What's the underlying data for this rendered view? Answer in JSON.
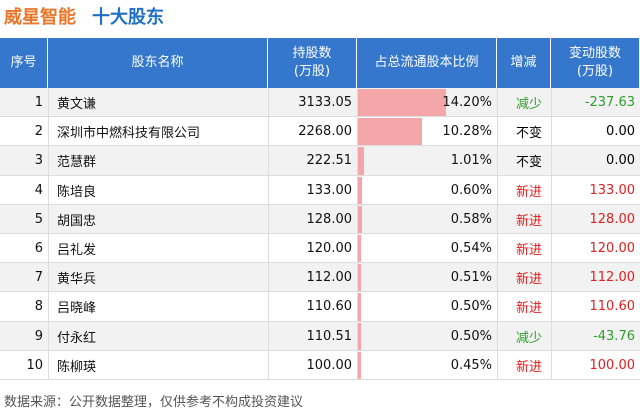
{
  "header": {
    "company": "威星智能",
    "title": "十大股东"
  },
  "table": {
    "columns": [
      [
        "序号"
      ],
      [
        "股东名称"
      ],
      [
        "持股数",
        "(万股)"
      ],
      [
        "占总流通股本比例"
      ],
      [
        "增减"
      ],
      [
        "变动股数",
        "(万股)"
      ]
    ],
    "rows": [
      {
        "rank": "1",
        "name": "黄文谦",
        "shares": "3133.05",
        "ratio": {
          "value": 14.2,
          "label": "14.20%"
        },
        "change": "减少",
        "amount": "-237.63",
        "color": "#2e9e2e"
      },
      {
        "rank": "2",
        "name": "深圳市中燃科技有限公司",
        "shares": "2268.00",
        "ratio": {
          "value": 10.28,
          "label": "10.28%"
        },
        "change": "不变",
        "amount": "0.00",
        "color": "#000000"
      },
      {
        "rank": "3",
        "name": "范慧群",
        "shares": "222.51",
        "ratio": {
          "value": 1.01,
          "label": "1.01%"
        },
        "change": "不变",
        "amount": "0.00",
        "color": "#000000"
      },
      {
        "rank": "4",
        "name": "陈培良",
        "shares": "133.00",
        "ratio": {
          "value": 0.6,
          "label": "0.60%"
        },
        "change": "新进",
        "amount": "133.00",
        "color": "#e02020"
      },
      {
        "rank": "5",
        "name": "胡国忠",
        "shares": "128.00",
        "ratio": {
          "value": 0.58,
          "label": "0.58%"
        },
        "change": "新进",
        "amount": "128.00",
        "color": "#e02020"
      },
      {
        "rank": "6",
        "name": "吕礼发",
        "shares": "120.00",
        "ratio": {
          "value": 0.54,
          "label": "0.54%"
        },
        "change": "新进",
        "amount": "120.00",
        "color": "#e02020"
      },
      {
        "rank": "7",
        "name": "黄华兵",
        "shares": "112.00",
        "ratio": {
          "value": 0.51,
          "label": "0.51%"
        },
        "change": "新进",
        "amount": "112.00",
        "color": "#e02020"
      },
      {
        "rank": "8",
        "name": "吕晓峰",
        "shares": "110.60",
        "ratio": {
          "value": 0.5,
          "label": "0.50%"
        },
        "change": "新进",
        "amount": "110.60",
        "color": "#e02020"
      },
      {
        "rank": "9",
        "name": "付永红",
        "shares": "110.51",
        "ratio": {
          "value": 0.5,
          "label": "0.50%"
        },
        "change": "减少",
        "amount": "-43.76",
        "color": "#2e9e2e"
      },
      {
        "rank": "10",
        "name": "陈柳瑛",
        "shares": "100.00",
        "ratio": {
          "value": 0.45,
          "label": "0.45%"
        },
        "change": "新进",
        "amount": "100.00",
        "color": "#e02020"
      }
    ]
  },
  "footer": "数据来源：公开数据整理，仅供参考不构成投资建议"
}
